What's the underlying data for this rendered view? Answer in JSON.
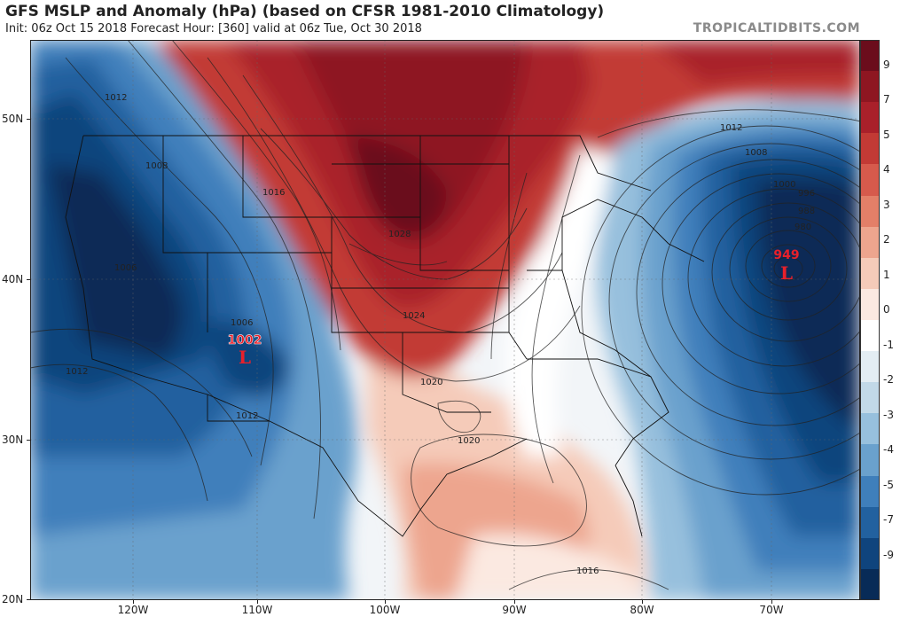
{
  "header": {
    "title": "GFS MSLP and Anomaly (hPa) (based on CFSR 1981-2010 Climatology)",
    "subtitle": "Init: 06z Oct 15 2018   Forecast Hour: [360]   valid at 06z Tue, Oct 30 2018",
    "brand": "TROPICALTIDBITS.COM"
  },
  "lat_labels": [
    "50N",
    "40N",
    "30N",
    "20N"
  ],
  "lon_labels": [
    "120W",
    "110W",
    "100W",
    "90W",
    "80W",
    "70W"
  ],
  "colorbar": {
    "labels": [
      "9",
      "7",
      "5",
      "4",
      "3",
      "2",
      "1",
      "0",
      "-1",
      "-2",
      "-3",
      "-4",
      "-5",
      "-7",
      "-9"
    ],
    "colors": [
      "#6b0d1c",
      "#8e1621",
      "#a9202a",
      "#c23a35",
      "#d65a4c",
      "#e37f68",
      "#eda58e",
      "#f5cbb9",
      "#fbe9e1",
      "#ffffff",
      "#e3edf3",
      "#c2d9e8",
      "#97c0dd",
      "#6aa1cd",
      "#3f7fbb",
      "#22619f",
      "#0f447d",
      "#082b57"
    ]
  },
  "contours": [
    "1012",
    "1008",
    "1016",
    "1028",
    "1024",
    "1020",
    "1020",
    "1016",
    "1012",
    "1008",
    "1012",
    "1006",
    "1006",
    "1012",
    "1008",
    "1000",
    "996",
    "988",
    "980"
  ],
  "lows": [
    {
      "value": "1002",
      "symbol": "L"
    },
    {
      "value": "949",
      "symbol": "L"
    }
  ]
}
